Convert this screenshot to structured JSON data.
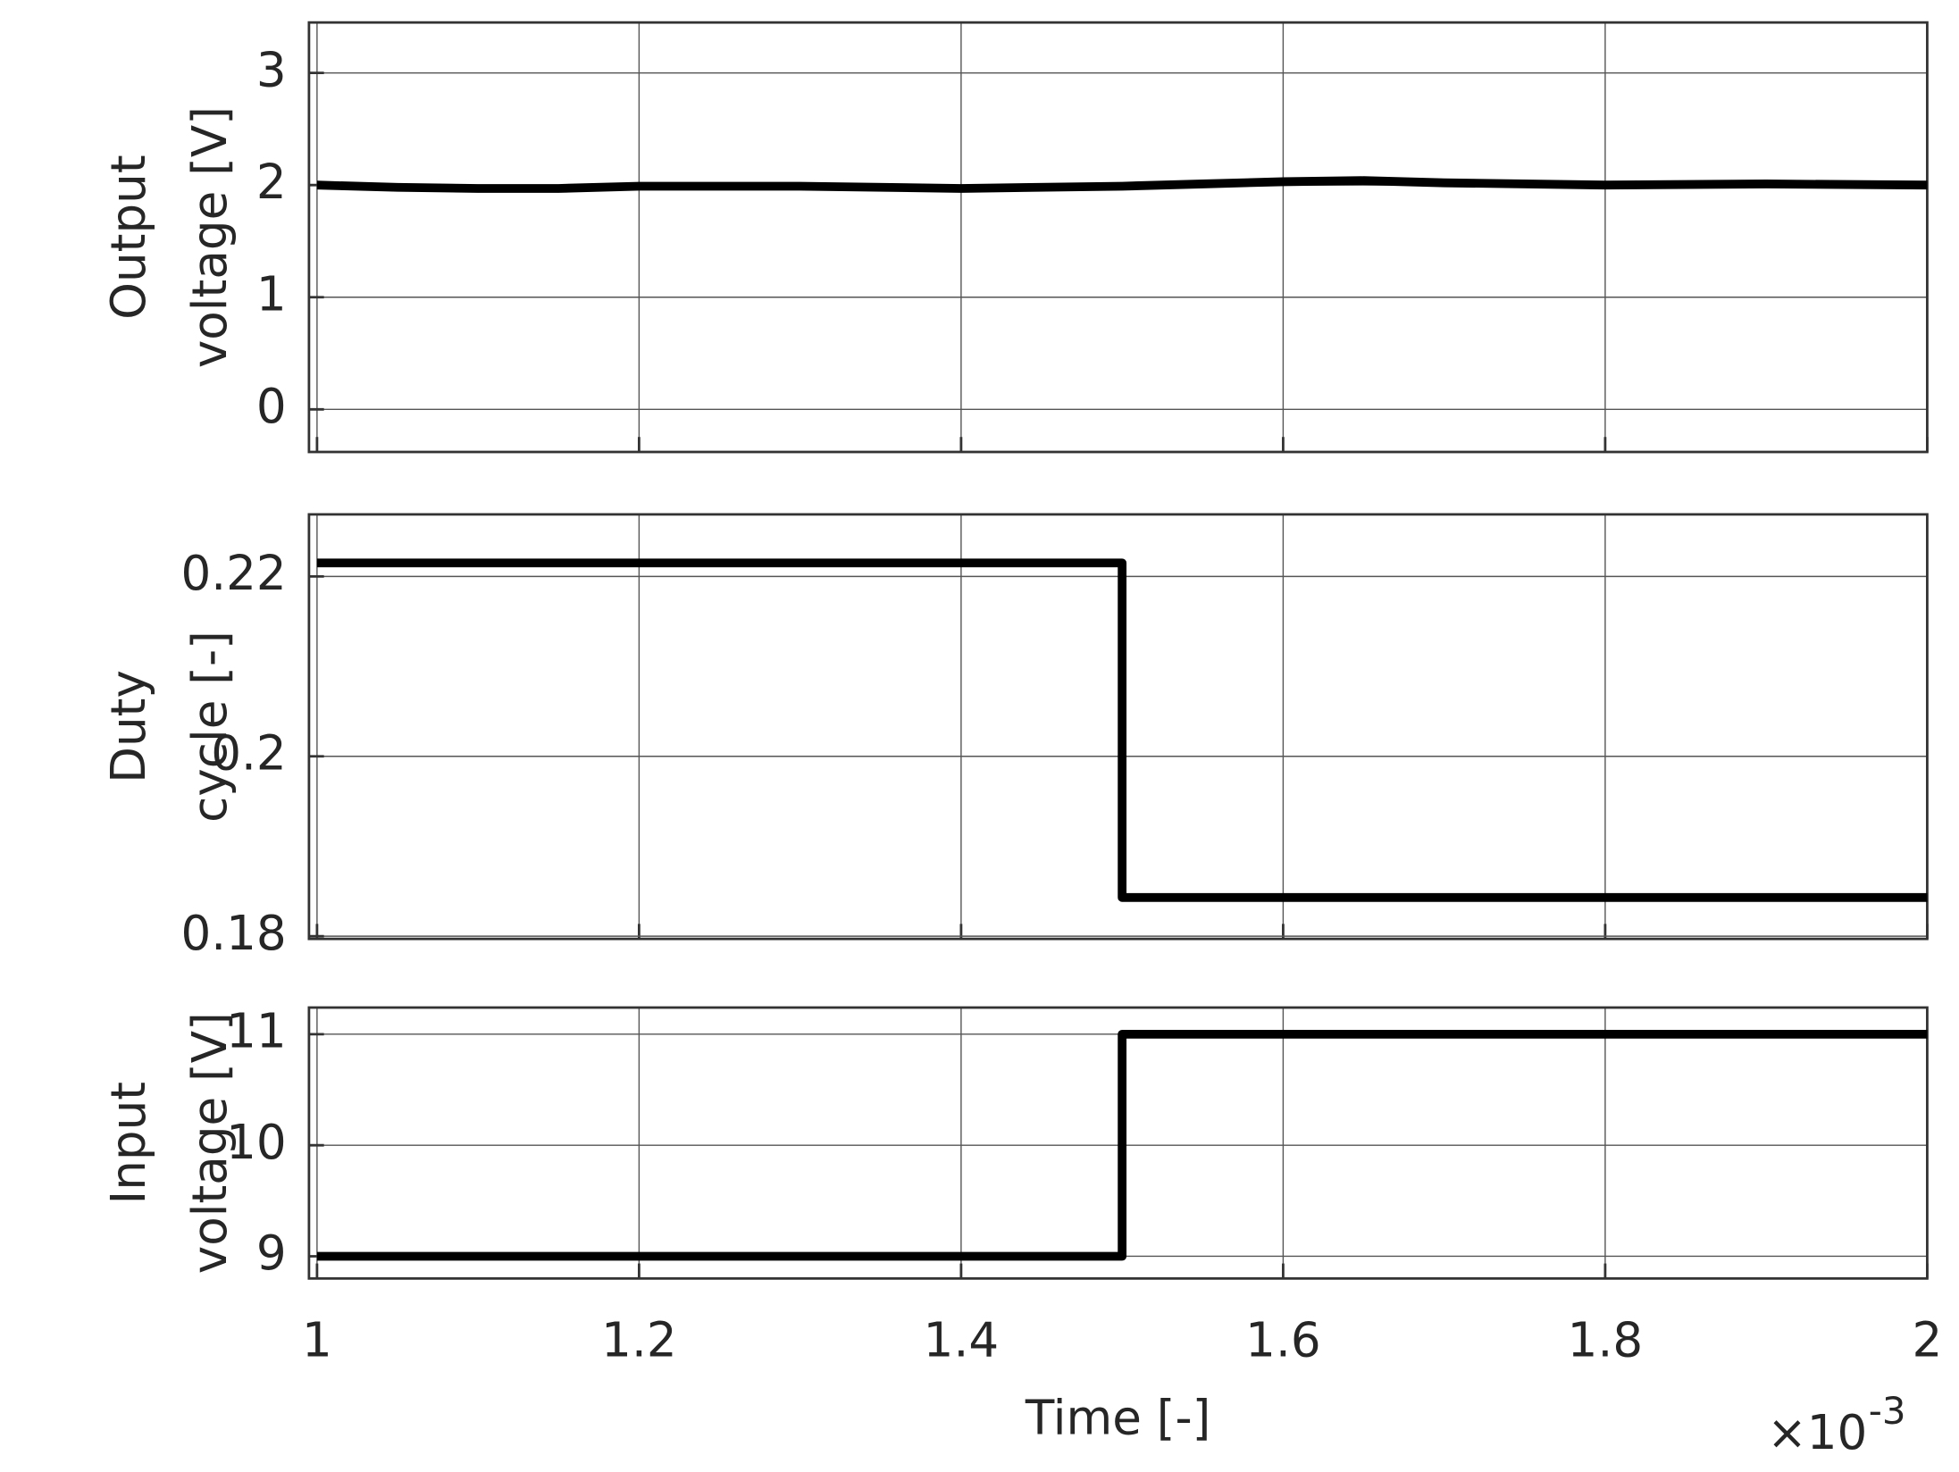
{
  "chart_data": [
    {
      "type": "line",
      "ylabel": [
        "Output",
        "voltage [V]"
      ],
      "xlim": [
        0.995,
        2
      ],
      "xticks": [
        1,
        1.2,
        1.4,
        1.6,
        1.8,
        2
      ],
      "ylim": [
        -0.38,
        3.45
      ],
      "yticks": [
        0,
        1,
        2,
        3
      ],
      "grid": true,
      "series": [
        {
          "color": "#000000",
          "x": [
            1,
            1.05,
            1.1,
            1.15,
            1.2,
            1.3,
            1.4,
            1.5,
            1.55,
            1.6,
            1.65,
            1.7,
            1.8,
            1.9,
            2
          ],
          "values": [
            2.0,
            1.98,
            1.97,
            1.97,
            1.99,
            1.99,
            1.97,
            1.99,
            2.01,
            2.03,
            2.04,
            2.02,
            2.0,
            2.01,
            2.0
          ]
        }
      ]
    },
    {
      "type": "line",
      "ylabel": [
        "Duty",
        "cycle [-]"
      ],
      "xlim": [
        0.995,
        2
      ],
      "xticks": [
        1,
        1.2,
        1.4,
        1.6,
        1.8,
        2
      ],
      "ylim": [
        0.1797,
        0.2269
      ],
      "yticks": [
        0.18,
        0.2,
        0.22
      ],
      "grid": true,
      "series": [
        {
          "color": "#000000",
          "x": [
            1,
            1.5,
            1.5,
            2
          ],
          "values": [
            0.2215,
            0.2215,
            0.1843,
            0.1843
          ]
        }
      ]
    },
    {
      "type": "line",
      "ylabel": [
        "Input",
        "voltage [V]"
      ],
      "xlabel": "Time [-]",
      "x_multiplier": "×10",
      "x_multiplier_exponent": "-3",
      "xlim": [
        0.995,
        2
      ],
      "xticks": [
        1,
        1.2,
        1.4,
        1.6,
        1.8,
        2
      ],
      "ylim": [
        8.8,
        11.24
      ],
      "yticks": [
        9,
        10,
        11
      ],
      "grid": true,
      "series": [
        {
          "color": "#000000",
          "x": [
            1,
            1.5,
            1.5,
            2
          ],
          "values": [
            9,
            9,
            11,
            11
          ]
        }
      ]
    }
  ]
}
